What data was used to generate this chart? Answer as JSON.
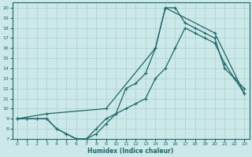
{
  "xlabel": "Humidex (Indice chaleur)",
  "bg_color": "#cce8e8",
  "grid_color": "#aad0d0",
  "line_color": "#1a6868",
  "xlim": [
    -0.5,
    23.5
  ],
  "ylim": [
    7,
    20.5
  ],
  "xticks": [
    0,
    1,
    2,
    3,
    4,
    5,
    6,
    7,
    8,
    9,
    10,
    11,
    12,
    13,
    14,
    15,
    16,
    17,
    18,
    19,
    20,
    21,
    22,
    23
  ],
  "yticks": [
    7,
    8,
    9,
    10,
    11,
    12,
    13,
    14,
    15,
    16,
    17,
    18,
    19,
    20
  ],
  "line1_x": [
    0,
    1,
    2,
    3,
    4,
    5,
    6,
    7,
    8,
    9,
    10,
    11,
    12,
    13,
    14,
    15,
    16,
    17,
    18,
    19,
    20,
    21,
    22,
    23
  ],
  "line1_y": [
    9,
    9,
    9,
    9,
    8,
    7.5,
    7,
    7,
    7.5,
    8.5,
    9.5,
    10,
    10.5,
    11,
    13,
    14,
    16,
    18,
    17.5,
    17,
    16.5,
    14.5,
    13,
    11.5
  ],
  "line2_x": [
    0,
    1,
    2,
    3,
    4,
    5,
    6,
    7,
    8,
    9,
    10,
    11,
    12,
    13,
    14,
    15,
    16,
    17,
    18,
    19,
    20,
    21,
    22,
    23
  ],
  "line2_y": [
    9,
    9,
    9,
    9,
    8,
    7.5,
    7,
    7,
    8,
    9,
    9.5,
    12,
    12.5,
    13.5,
    16,
    20,
    20,
    18.5,
    18,
    17.5,
    17,
    14,
    13,
    12
  ],
  "line3_x": [
    0,
    3,
    9,
    14,
    15,
    20,
    23
  ],
  "line3_y": [
    9,
    9.5,
    10,
    16,
    20,
    17.5,
    11.5
  ],
  "marker_size": 2.5,
  "line_width": 0.9
}
